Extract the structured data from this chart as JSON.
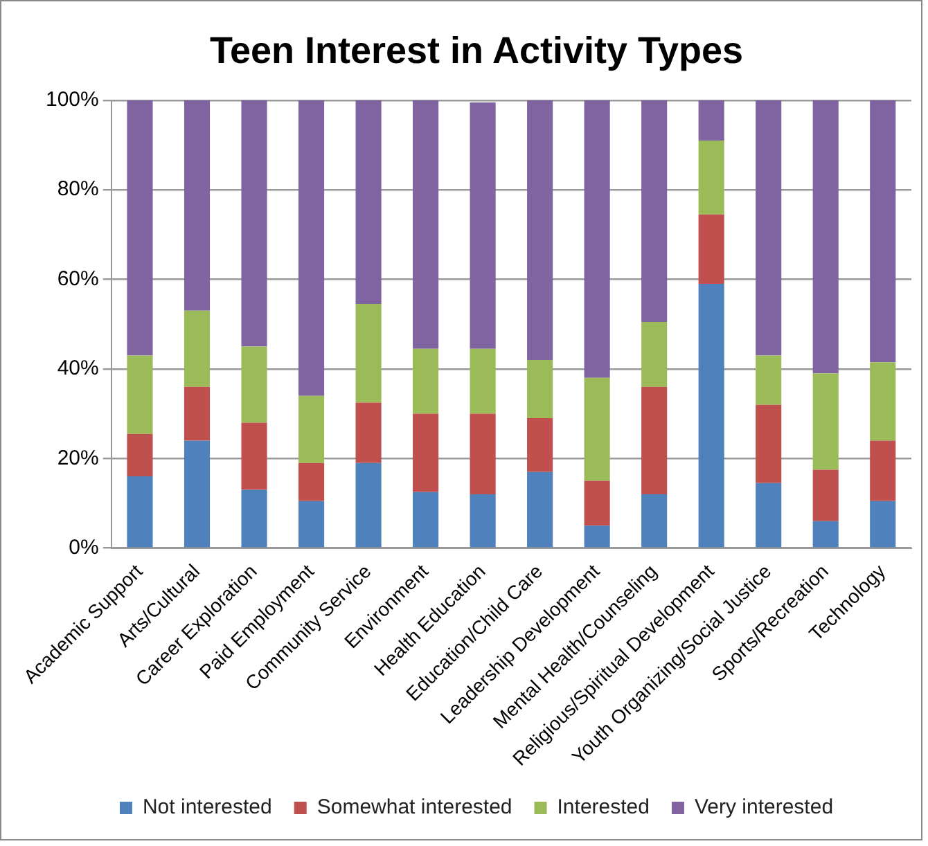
{
  "chart_data": {
    "type": "bar",
    "title": "Teen Interest in Activity Types",
    "stacked": true,
    "categories": [
      "Academic Support",
      "Arts/Cultural",
      "Career Exploration",
      "Paid Employment",
      "Community Service",
      "Environment",
      "Health Education",
      "Education/Child Care",
      "Leadership Development",
      "Mental Health/Counseling",
      "Religious/Spiritual Development",
      "Youth Organizing/Social Justice",
      "Sports/Recreation",
      "Technology"
    ],
    "series": [
      {
        "name": "Not interested",
        "color": "#4f81bd",
        "values": [
          16,
          24,
          13,
          10.5,
          19,
          12.5,
          12,
          17,
          5,
          12,
          59,
          14.5,
          6,
          10.5
        ]
      },
      {
        "name": "Somewhat interested",
        "color": "#c0504d",
        "values": [
          9.5,
          12,
          15,
          8.5,
          13.5,
          17.5,
          18,
          12,
          10,
          24,
          15.5,
          17.5,
          11.5,
          13.5
        ]
      },
      {
        "name": "Interested",
        "color": "#9bbb59",
        "values": [
          17.5,
          17,
          17,
          15,
          22,
          14.5,
          14.5,
          13,
          23,
          14.5,
          16.5,
          11,
          21.5,
          17.5
        ]
      },
      {
        "name": "Very interested",
        "color": "#8064a2",
        "values": [
          57,
          47,
          55,
          66,
          45.5,
          55.5,
          55,
          58,
          62,
          49.5,
          9,
          57,
          61,
          58.5
        ]
      }
    ],
    "ylim": [
      0,
      100
    ],
    "yticks": [
      {
        "value": 0,
        "label": "0%"
      },
      {
        "value": 20,
        "label": "20%"
      },
      {
        "value": 40,
        "label": "40%"
      },
      {
        "value": 60,
        "label": "60%"
      },
      {
        "value": 80,
        "label": "80%"
      },
      {
        "value": 100,
        "label": "100%"
      }
    ],
    "grid": "y",
    "legend": "bottom"
  }
}
